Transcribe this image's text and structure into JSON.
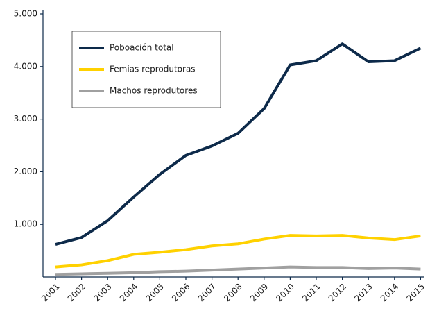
{
  "chart_data": {
    "type": "line",
    "x": [
      "2001",
      "2002",
      "2003",
      "2004",
      "2005",
      "2006",
      "2007",
      "2008",
      "2009",
      "2010",
      "2011",
      "2012",
      "2013",
      "2014",
      "2015"
    ],
    "series": [
      {
        "name": "Poboación total",
        "color": "#0d2a4a",
        "values": [
          620,
          750,
          1070,
          1520,
          1950,
          2310,
          2490,
          2730,
          3200,
          4030,
          4110,
          4430,
          4090,
          4110,
          4350
        ]
      },
      {
        "name": "Femias reprodutoras",
        "color": "#ffd100",
        "values": [
          190,
          230,
          310,
          430,
          470,
          520,
          590,
          630,
          720,
          790,
          780,
          790,
          740,
          710,
          780
        ]
      },
      {
        "name": "Machos reprodutores",
        "color": "#a0a0a0",
        "values": [
          50,
          60,
          70,
          80,
          100,
          110,
          130,
          150,
          170,
          190,
          180,
          180,
          160,
          170,
          150
        ]
      }
    ],
    "ylim": [
      0,
      5000
    ],
    "yticks": [
      {
        "value": 1000,
        "label": "1.000"
      },
      {
        "value": 2000,
        "label": "2.000"
      },
      {
        "value": 3000,
        "label": "3.000"
      },
      {
        "value": 4000,
        "label": "4.000"
      },
      {
        "value": 5000,
        "label": "5.000"
      }
    ],
    "legend": "top-left"
  }
}
